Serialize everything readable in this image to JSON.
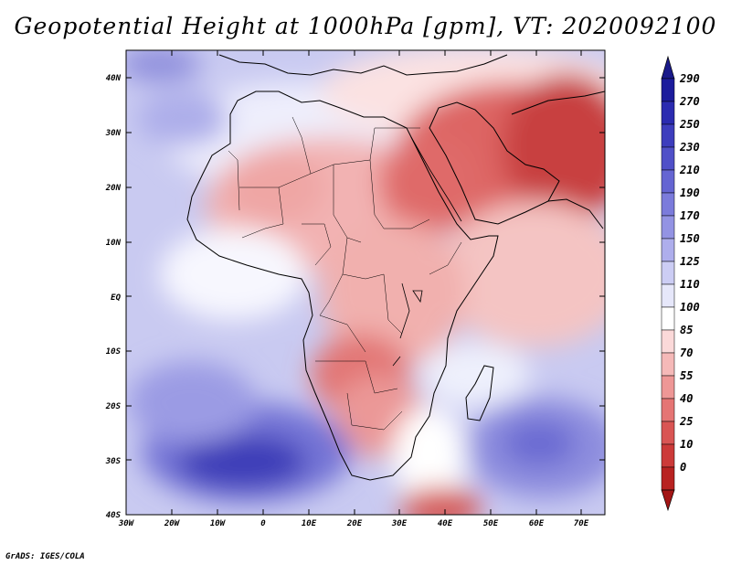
{
  "title": "Geopotential Height at 1000hPa [gpm], VT: 2020092100",
  "credit": "GrADS: IGES/COLA",
  "map": {
    "region": "Africa and Middle East",
    "lat_labels": [
      "40N",
      "30N",
      "20N",
      "10N",
      "EQ",
      "10S",
      "20S",
      "30S",
      "40S"
    ],
    "lon_labels": [
      "30W",
      "20W",
      "10W",
      "0",
      "10E",
      "20E",
      "30E",
      "40E",
      "50E",
      "60E",
      "70E"
    ]
  },
  "colorbar": {
    "labels": [
      "290",
      "270",
      "250",
      "230",
      "210",
      "190",
      "170",
      "150",
      "125",
      "110",
      "100",
      "85",
      "70",
      "55",
      "40",
      "25",
      "10",
      "0"
    ],
    "colors": [
      "#1c1c9c",
      "#2b2bb0",
      "#3d3dbd",
      "#5050c8",
      "#6565d2",
      "#7b7bdb",
      "#9393e3",
      "#aeaeec",
      "#cccdf4",
      "#e6e7fa",
      "#ffffff",
      "#fbd9d9",
      "#f5b9b8",
      "#ee9796",
      "#e57574",
      "#d95554",
      "#cc3a39",
      "#b82221"
    ],
    "top_arrow_color": "#1a1a8a",
    "bottom_arrow_color": "#a31515"
  }
}
